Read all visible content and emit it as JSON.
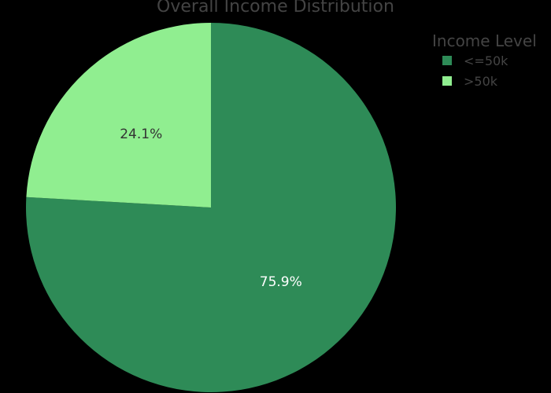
{
  "chart_data": {
    "type": "pie",
    "title": "Overall Income Distribution",
    "title_color": "#444444",
    "legend_title": "Income Level",
    "legend_title_color": "#444444",
    "legend_label_color": "#444444",
    "legend_placement": "top-right",
    "slices": [
      {
        "label": "<=50k",
        "value": 75.9,
        "display": "75.9%",
        "color": "#2e8b57",
        "text_color": "#ffffff"
      },
      {
        "label": ">50k",
        "value": 24.1,
        "display": "24.1%",
        "color": "#90ee90",
        "text_color": "#333333"
      }
    ]
  }
}
